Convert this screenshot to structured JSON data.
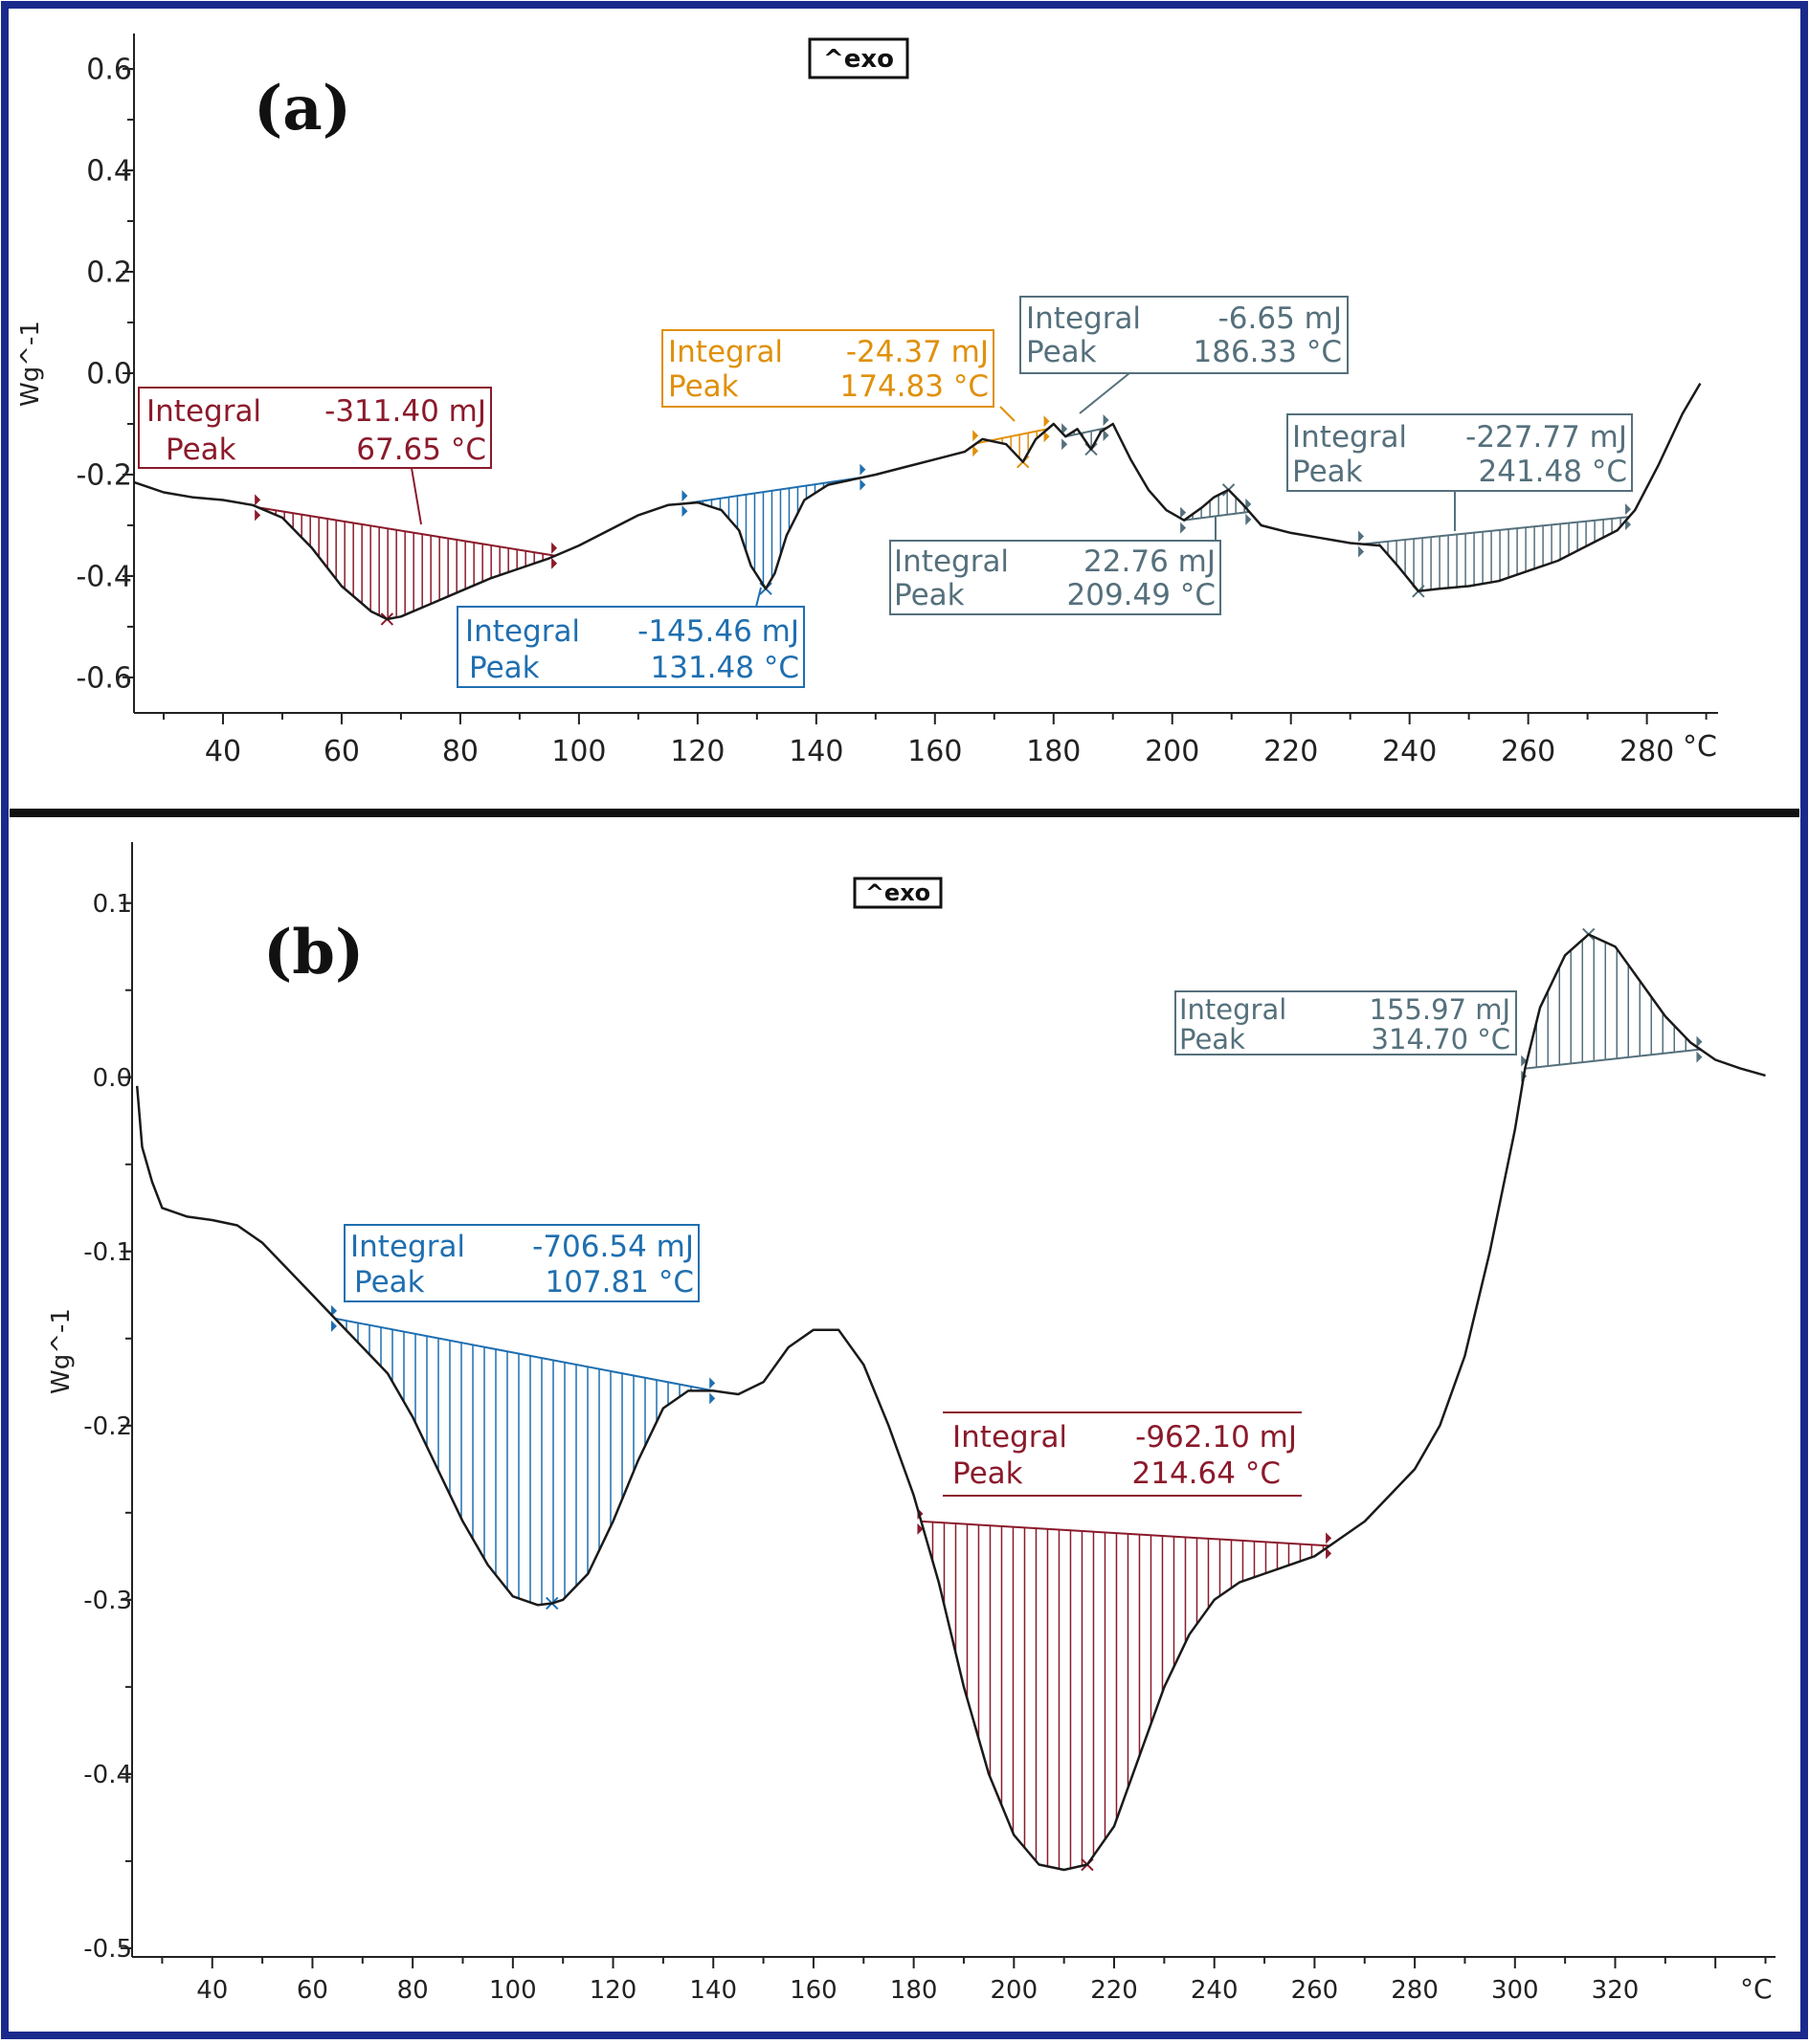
{
  "colors": {
    "border": "#1a2a8c",
    "curve": "#1a1a1a",
    "axis": "#222222",
    "maroon": "#8b1a2b",
    "blue": "#1f6fb0",
    "orange": "#e0900a",
    "slate": "#55707c"
  },
  "chart_data": [
    {
      "type": "line",
      "panel_label": "(a)",
      "legend_text": "^exo",
      "ylabel": "Wg^-1",
      "x_unit": "°C",
      "xlim": [
        25,
        292
      ],
      "ylim": [
        -0.67,
        0.67
      ],
      "x_ticks": [
        "40",
        "60",
        "80",
        "100",
        "120",
        "140",
        "160",
        "180",
        "200",
        "220",
        "240",
        "260",
        "280"
      ],
      "y_ticks": [
        "0.6",
        "0.4",
        "0.2",
        "0.0",
        "-0.2",
        "-0.4",
        "-0.6"
      ],
      "series": [
        {
          "x": [
            25,
            30,
            35,
            40,
            45,
            50,
            55,
            60,
            65,
            67.65,
            70,
            75,
            80,
            85,
            90,
            95,
            100,
            105,
            110,
            115,
            120,
            124,
            127,
            129,
            131.48,
            133,
            135,
            138,
            142,
            146,
            150,
            155,
            160,
            165,
            168,
            172,
            174.83,
            177,
            180,
            182,
            184,
            186.33,
            188,
            190,
            193,
            196,
            199,
            202,
            205,
            207,
            209.49,
            212,
            215,
            220,
            225,
            230,
            235,
            238,
            241.48,
            245,
            250,
            255,
            260,
            265,
            270,
            275,
            278,
            282,
            286,
            289
          ],
          "y": [
            -0.215,
            -0.235,
            -0.245,
            -0.25,
            -0.26,
            -0.285,
            -0.345,
            -0.42,
            -0.47,
            -0.485,
            -0.48,
            -0.455,
            -0.43,
            -0.405,
            -0.385,
            -0.365,
            -0.34,
            -0.31,
            -0.28,
            -0.26,
            -0.255,
            -0.27,
            -0.31,
            -0.38,
            -0.425,
            -0.395,
            -0.32,
            -0.25,
            -0.22,
            -0.21,
            -0.2,
            -0.185,
            -0.17,
            -0.155,
            -0.13,
            -0.14,
            -0.175,
            -0.13,
            -0.1,
            -0.125,
            -0.11,
            -0.15,
            -0.115,
            -0.1,
            -0.17,
            -0.23,
            -0.27,
            -0.29,
            -0.265,
            -0.245,
            -0.23,
            -0.26,
            -0.3,
            -0.315,
            -0.325,
            -0.335,
            -0.34,
            -0.38,
            -0.43,
            -0.425,
            -0.42,
            -0.41,
            -0.39,
            -0.37,
            -0.34,
            -0.31,
            -0.27,
            -0.18,
            -0.08,
            -0.02
          ]
        }
      ],
      "integrations": [
        {
          "color": "maroon",
          "integral": "-311.40 mJ",
          "peak": "67.65 °C",
          "x_start": 46,
          "x_end": 96,
          "peak_x": 67.65
        },
        {
          "color": "blue",
          "integral": "-145.46 mJ",
          "peak": "131.48 °C",
          "x_start": 118,
          "x_end": 148,
          "peak_x": 131.48
        },
        {
          "color": "orange",
          "integral": "-24.37 mJ",
          "peak": "174.83 °C",
          "x_start": 167,
          "x_end": 179,
          "peak_x": 174.83
        },
        {
          "color": "slate",
          "integral": "-6.65 mJ",
          "peak": "186.33 °C",
          "x_start": 182,
          "x_end": 189,
          "peak_x": 186.33
        },
        {
          "color": "slate",
          "integral": "22.76 mJ",
          "peak": "209.49 °C",
          "x_start": 202,
          "x_end": 213,
          "peak_x": 209.49
        },
        {
          "color": "slate",
          "integral": "-227.77 mJ",
          "peak": "241.48 °C",
          "x_start": 232,
          "x_end": 277,
          "peak_x": 241.48
        }
      ]
    },
    {
      "type": "line",
      "panel_label": "(b)",
      "legend_text": "^exo",
      "ylabel": "Wg^-1",
      "x_unit": "°C",
      "xlim": [
        24,
        352
      ],
      "ylim": [
        -0.505,
        0.135
      ],
      "x_ticks": [
        "40",
        "60",
        "80",
        "100",
        "120",
        "140",
        "160",
        "180",
        "200",
        "220",
        "240",
        "260",
        "280",
        "300",
        "320"
      ],
      "y_ticks": [
        "0.1",
        "0.0",
        "-0.1",
        "-0.2",
        "-0.3",
        "-0.4",
        "-0.5"
      ],
      "series": [
        {
          "x": [
            25,
            26,
            28,
            30,
            35,
            40,
            45,
            50,
            55,
            60,
            65,
            70,
            75,
            80,
            85,
            90,
            95,
            100,
            105,
            107.81,
            110,
            115,
            120,
            125,
            130,
            135,
            140,
            145,
            150,
            155,
            160,
            165,
            170,
            175,
            180,
            185,
            190,
            195,
            200,
            205,
            210,
            214.64,
            220,
            225,
            230,
            235,
            240,
            245,
            250,
            255,
            260,
            265,
            270,
            275,
            280,
            285,
            290,
            295,
            300,
            302,
            305,
            310,
            314.7,
            320,
            325,
            330,
            335,
            340,
            345,
            350
          ],
          "y": [
            -0.005,
            -0.04,
            -0.06,
            -0.075,
            -0.08,
            -0.082,
            -0.085,
            -0.095,
            -0.11,
            -0.125,
            -0.14,
            -0.155,
            -0.17,
            -0.195,
            -0.225,
            -0.255,
            -0.28,
            -0.298,
            -0.303,
            -0.302,
            -0.3,
            -0.285,
            -0.255,
            -0.22,
            -0.19,
            -0.18,
            -0.18,
            -0.182,
            -0.175,
            -0.155,
            -0.145,
            -0.145,
            -0.165,
            -0.2,
            -0.24,
            -0.29,
            -0.35,
            -0.4,
            -0.435,
            -0.452,
            -0.455,
            -0.452,
            -0.43,
            -0.39,
            -0.35,
            -0.32,
            -0.3,
            -0.29,
            -0.285,
            -0.28,
            -0.275,
            -0.265,
            -0.255,
            -0.24,
            -0.225,
            -0.2,
            -0.16,
            -0.1,
            -0.03,
            0.005,
            0.04,
            0.07,
            0.082,
            0.075,
            0.055,
            0.035,
            0.02,
            0.01,
            0.005,
            0.001
          ]
        }
      ],
      "integrations": [
        {
          "color": "blue",
          "integral": "-706.54 mJ",
          "peak": "107.81 °C",
          "x_start": 64.5,
          "x_end": 140,
          "peak_x": 107.81
        },
        {
          "color": "maroon",
          "integral": "-962.10 mJ",
          "peak": "214.64 °C",
          "x_start": 181.5,
          "x_end": 263,
          "peak_x": 214.64
        },
        {
          "color": "slate",
          "integral": "155.97 mJ",
          "peak": "314.70 °C",
          "x_start": 302,
          "x_end": 337,
          "peak_x": 314.7
        }
      ]
    }
  ],
  "labels": {
    "a": {
      "panel": "(a)",
      "exo": "^exo",
      "ylabel": "Wg^-1",
      "unit": "°C",
      "integral_word": "Integral",
      "peak_word": "Peak",
      "box1_integral": "-311.40 mJ",
      "box1_peak": "67.65 °C",
      "box2_integral": "-145.46 mJ",
      "box2_peak": "131.48 °C",
      "box3_integral": "-24.37 mJ",
      "box3_peak": "174.83 °C",
      "box4_integral": "-6.65 mJ",
      "box4_peak": "186.33 °C",
      "box5_integral": "22.76 mJ",
      "box5_peak": "209.49 °C",
      "box6_integral": "-227.77 mJ",
      "box6_peak": "241.48 °C"
    },
    "b": {
      "panel": "(b)",
      "exo": "^exo",
      "ylabel": "Wg^-1",
      "unit": "°C",
      "integral_word": "Integral",
      "peak_word": "Peak",
      "box1_integral": "-706.54 mJ",
      "box1_peak": "107.81 °C",
      "box2_integral": "-962.10 mJ",
      "box2_peak": "214.64 °C",
      "box3_integral": "155.97 mJ",
      "box3_peak": "314.70 °C"
    }
  }
}
